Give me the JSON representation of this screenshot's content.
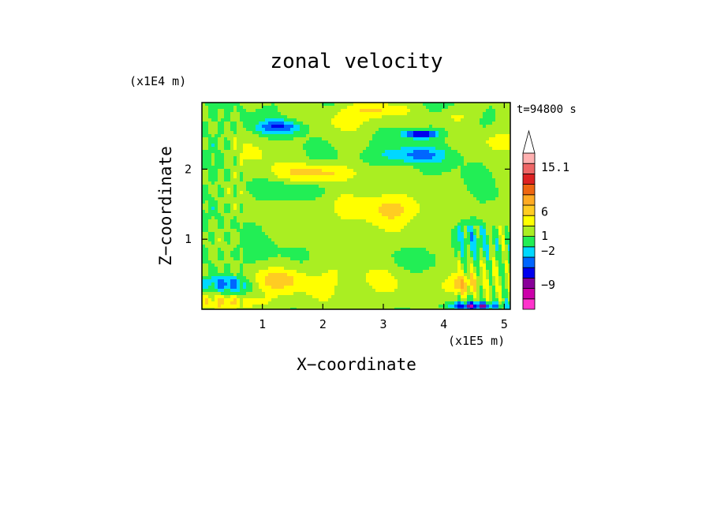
{
  "chart_data": {
    "type": "heatmap",
    "title": "zonal velocity",
    "xlabel": "X−coordinate",
    "ylabel": "Z−coordinate",
    "x_scale_note": "(x1E5 m)",
    "y_scale_note": "(x1E4 m)",
    "time_label": "t=94800 s",
    "xlim": [
      0,
      5.1
    ],
    "ylim": [
      0,
      2.95
    ],
    "x_ticks": [
      1,
      2,
      3,
      4,
      5
    ],
    "x_tick_labels": [
      "1",
      "2",
      "3",
      "4",
      "5"
    ],
    "y_ticks": [
      1,
      2
    ],
    "y_tick_labels": [
      "1",
      "2"
    ],
    "colorbar": {
      "colors": [
        "#ff33cc",
        "#cc00aa",
        "#880099",
        "#0000ee",
        "#0066ff",
        "#00d8ff",
        "#22ee55",
        "#aaee22",
        "#ffff00",
        "#ffcc22",
        "#ffaa22",
        "#ee6611",
        "#dd2222",
        "#ee6666",
        "#ffb0b0",
        "#ffffff"
      ],
      "tick_labels": [
        "15.1",
        "6",
        "1",
        "−2",
        "−9"
      ],
      "label_values": [
        15.1,
        6,
        1,
        -2,
        -9
      ],
      "min": -14,
      "max": 18
    },
    "features": [
      {
        "x": 2.1,
        "z": 0.4,
        "sx": 2.4,
        "sz": 0.35,
        "v": 2.2
      },
      {
        "x": 2.6,
        "z": 1.35,
        "sx": 1.6,
        "sz": 0.45,
        "v": 1.8
      },
      {
        "x": 0.9,
        "z": 0.72,
        "sx": 0.8,
        "sz": 0.25,
        "v": -1.2
      },
      {
        "x": 0.4,
        "z": 0.36,
        "sx": 0.4,
        "sz": 0.13,
        "v": -6.5
      },
      {
        "x": 0.5,
        "z": 0.1,
        "sx": 0.6,
        "sz": 0.1,
        "v": 3.2
      },
      {
        "x": 1.2,
        "z": 0.42,
        "sx": 0.5,
        "sz": 0.15,
        "v": 3.0
      },
      {
        "x": 1.5,
        "z": 1.7,
        "sx": 0.6,
        "sz": 0.12,
        "v": -2.6
      },
      {
        "x": 1.3,
        "z": 2.6,
        "sx": 0.4,
        "sz": 0.1,
        "v": -6.0
      },
      {
        "x": 1.9,
        "z": 1.95,
        "sx": 0.7,
        "sz": 0.13,
        "v": 4.5
      },
      {
        "x": 2.4,
        "z": 2.7,
        "sx": 0.7,
        "sz": 0.2,
        "v": 2.6
      },
      {
        "x": 3.5,
        "z": 2.2,
        "sx": 0.6,
        "sz": 0.12,
        "v": -4.5
      },
      {
        "x": 3.6,
        "z": 2.5,
        "sx": 0.3,
        "sz": 0.06,
        "v": -8.5
      },
      {
        "x": 3.2,
        "z": 1.45,
        "sx": 0.6,
        "sz": 0.2,
        "v": 2.8
      },
      {
        "x": 4.5,
        "z": 1.0,
        "sx": 0.35,
        "sz": 0.25,
        "v": -1.8
      },
      {
        "x": 4.3,
        "z": 0.35,
        "sx": 0.25,
        "sz": 0.15,
        "v": 5.0
      },
      {
        "x": 4.5,
        "z": 0.05,
        "sx": 0.4,
        "sz": 0.05,
        "v": -8.5
      },
      {
        "x": 4.9,
        "z": 2.4,
        "sx": 0.4,
        "sz": 0.2,
        "v": 3.2
      },
      {
        "x": 4.2,
        "z": 2.75,
        "sx": 0.3,
        "sz": 0.12,
        "v": 2.4
      },
      {
        "x": 3.6,
        "z": 0.7,
        "sx": 0.6,
        "sz": 0.18,
        "v": -1.6
      },
      {
        "x": 0.9,
        "z": 2.2,
        "sx": 0.5,
        "sz": 0.25,
        "v": 2.0
      },
      {
        "x": 2.9,
        "z": 2.85,
        "sx": 0.5,
        "sz": 0.1,
        "v": 3.5
      }
    ]
  }
}
